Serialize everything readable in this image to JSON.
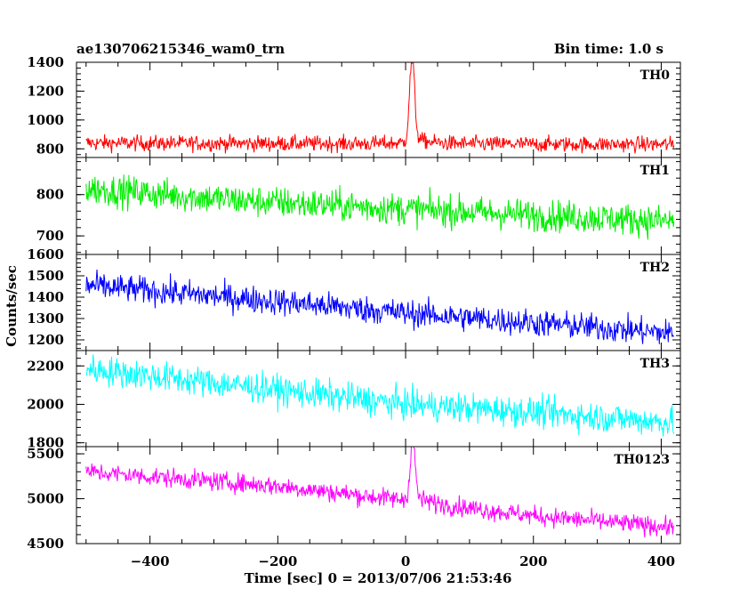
{
  "chart_data": {
    "type": "line",
    "title": "ae130706215346_wam0_trn",
    "bin_time_label": "Bin time: 1.0 s",
    "xlabel": "Time [sec] 0 = 2013/07/06 21:53:46",
    "ylabel": "Counts/sec",
    "xlim": [
      -515,
      430
    ],
    "x_ticks": [
      -400,
      -200,
      0,
      200,
      400
    ],
    "x_tick_labels": [
      "−400",
      "−200",
      "0",
      "200",
      "400"
    ],
    "x_range": [
      -500,
      420
    ],
    "grid": false,
    "panels": [
      {
        "name": "TH0",
        "color": "#ff0000",
        "ylim": [
          740,
          1400
        ],
        "y_ticks": [
          800,
          1000,
          1200,
          1400
        ],
        "y_tick_labels": [
          "800",
          "1000",
          "1200",
          "1400"
        ],
        "baseline": [
          [
            -500,
            840
          ],
          [
            420,
            830
          ]
        ],
        "noise": 38,
        "peaks": [
          {
            "center": 10,
            "width": 4,
            "amplitude": 560
          }
        ]
      },
      {
        "name": "TH1",
        "color": "#00ee00",
        "ylim": [
          655,
          890
        ],
        "y_ticks": [
          700,
          800
        ],
        "y_tick_labels": [
          "700",
          "800"
        ],
        "baseline": [
          [
            -500,
            815
          ],
          [
            -250,
            785
          ],
          [
            0,
            765
          ],
          [
            420,
            735
          ]
        ],
        "noise": 27,
        "peaks": []
      },
      {
        "name": "TH2",
        "color": "#0000ff",
        "ylim": [
          1150,
          1600
        ],
        "y_ticks": [
          1200,
          1300,
          1400,
          1500,
          1600
        ],
        "y_tick_labels": [
          "1200",
          "1300",
          "1400",
          "1500",
          "1600"
        ],
        "baseline": [
          [
            -500,
            1455
          ],
          [
            -200,
            1380
          ],
          [
            0,
            1325
          ],
          [
            200,
            1280
          ],
          [
            420,
            1230
          ]
        ],
        "noise": 45,
        "peaks": []
      },
      {
        "name": "TH3",
        "color": "#00ffff",
        "ylim": [
          1780,
          2280
        ],
        "y_ticks": [
          1800,
          2000,
          2200
        ],
        "y_tick_labels": [
          "1800",
          "2000",
          "2200"
        ],
        "baseline": [
          [
            -500,
            2185
          ],
          [
            -200,
            2075
          ],
          [
            0,
            2000
          ],
          [
            200,
            1960
          ],
          [
            420,
            1905
          ]
        ],
        "noise": 55,
        "peaks": []
      },
      {
        "name": "TH0123",
        "color": "#ff00ff",
        "ylim": [
          4500,
          5580
        ],
        "y_ticks": [
          4500,
          5000,
          5500
        ],
        "y_tick_labels": [
          "4500",
          "5000",
          "5500"
        ],
        "baseline": [
          [
            -500,
            5300
          ],
          [
            -200,
            5140
          ],
          [
            0,
            4980
          ],
          [
            200,
            4810
          ],
          [
            420,
            4680
          ]
        ],
        "noise": 75,
        "peaks": [
          {
            "center": 11,
            "width": 4,
            "amplitude": 620
          }
        ]
      }
    ]
  }
}
